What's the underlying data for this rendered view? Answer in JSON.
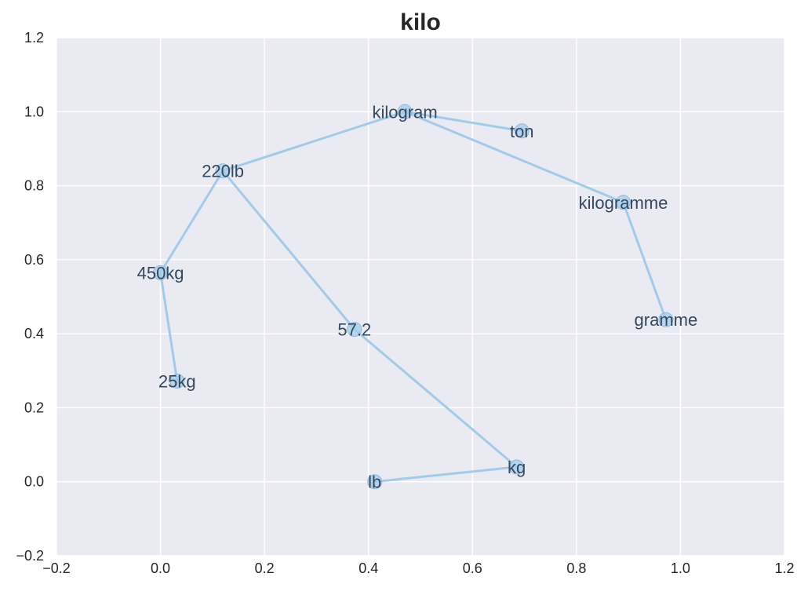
{
  "chart_data": {
    "type": "scatter",
    "title": "kilo",
    "xlabel": "",
    "ylabel": "",
    "xlim": [
      -0.2,
      1.2
    ],
    "ylim": [
      -0.2,
      1.2
    ],
    "xticks": [
      -0.2,
      0.0,
      0.2,
      0.4,
      0.6,
      0.8,
      1.0,
      1.2
    ],
    "yticks": [
      -0.2,
      0.0,
      0.2,
      0.4,
      0.6,
      0.8,
      1.0,
      1.2
    ],
    "xtick_labels": [
      "−0.2",
      "0.0",
      "0.2",
      "0.4",
      "0.6",
      "0.8",
      "1.0",
      "1.2"
    ],
    "ytick_labels": [
      "−0.2",
      "0.0",
      "0.2",
      "0.4",
      "0.6",
      "0.8",
      "1.0",
      "1.2"
    ],
    "grid": true,
    "colors": {
      "background": "#eaeaf2",
      "grid": "#ffffff",
      "line": "#a3cbe9",
      "marker": "#a3cbe9",
      "label": "#34495e"
    },
    "points": [
      {
        "label": "kilogram",
        "x": 0.47,
        "y": 1.0
      },
      {
        "label": "ton",
        "x": 0.695,
        "y": 0.948
      },
      {
        "label": "220lb",
        "x": 0.12,
        "y": 0.84
      },
      {
        "label": "kilogramme",
        "x": 0.89,
        "y": 0.755
      },
      {
        "label": "450kg",
        "x": 0.0,
        "y": 0.565
      },
      {
        "label": "gramme",
        "x": 0.972,
        "y": 0.438
      },
      {
        "label": "57.2",
        "x": 0.373,
        "y": 0.412
      },
      {
        "label": "25kg",
        "x": 0.032,
        "y": 0.272
      },
      {
        "label": "kg",
        "x": 0.685,
        "y": 0.04
      },
      {
        "label": "lb",
        "x": 0.412,
        "y": 0.0
      }
    ],
    "edges": [
      [
        "kilogram",
        "ton"
      ],
      [
        "kilogram",
        "220lb"
      ],
      [
        "kilogram",
        "kilogramme"
      ],
      [
        "kilogramme",
        "gramme"
      ],
      [
        "220lb",
        "450kg"
      ],
      [
        "450kg",
        "25kg"
      ],
      [
        "220lb",
        "57.2"
      ],
      [
        "57.2",
        "kg"
      ],
      [
        "kg",
        "lb"
      ]
    ]
  }
}
